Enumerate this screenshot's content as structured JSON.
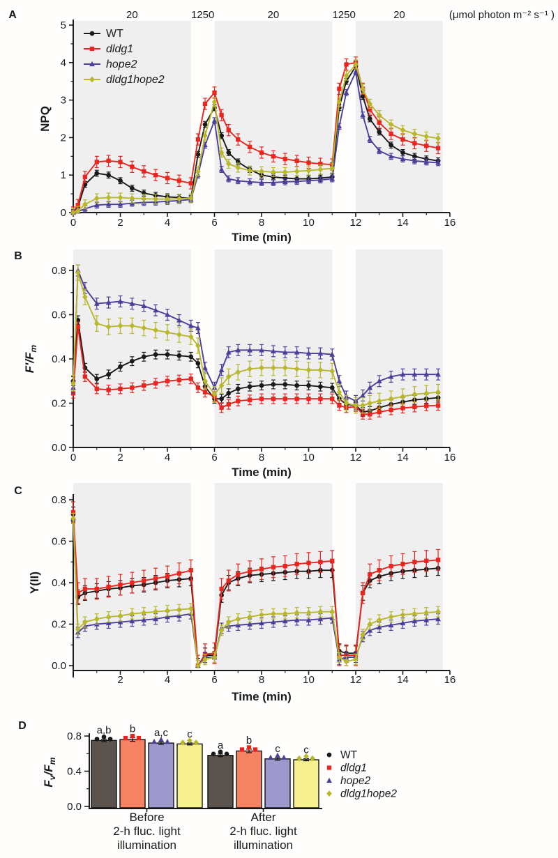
{
  "style": {
    "band_color": "#efefef",
    "axis_color": "#1a1a1a",
    "series": [
      {
        "name": "WT",
        "italic": false,
        "color": "#1a1a1a",
        "marker": "circle"
      },
      {
        "name": "dldg1",
        "italic": true,
        "color": "#e8251f",
        "marker": "square"
      },
      {
        "name": "hope2",
        "italic": true,
        "color": "#4a3f99",
        "marker": "triangle"
      },
      {
        "name": "dldg1hope2",
        "italic": true,
        "color": "#b9b72c",
        "marker": "diamond"
      }
    ]
  },
  "top_axis": {
    "unit_label": "(μmol photon m⁻² s⁻¹ )",
    "bands": [
      {
        "label": "20",
        "from": 0,
        "to": 5,
        "shaded": true
      },
      {
        "label": "1250",
        "from": 5,
        "to": 6,
        "shaded": false
      },
      {
        "label": "20",
        "from": 6,
        "to": 11,
        "shaded": true
      },
      {
        "label": "1250",
        "from": 11,
        "to": 12,
        "shaded": false
      },
      {
        "label": "20",
        "from": 12,
        "to": 15.7,
        "shaded": true
      }
    ]
  },
  "chart_data": [
    {
      "panel": "A",
      "type": "line",
      "ylabel_parts": [
        {
          "t": "NPQ"
        }
      ],
      "ylabel_italic": false,
      "xlabel": "Time (min)",
      "xlim": [
        0,
        16
      ],
      "ylim": [
        0,
        5
      ],
      "xticks": [
        0,
        2,
        4,
        6,
        8,
        10,
        12,
        14,
        16
      ],
      "xtick_labels": [
        "0",
        "2",
        "4",
        "6",
        "8",
        "10",
        "12",
        "14",
        "16"
      ],
      "xminor": [
        1,
        3,
        5,
        7,
        9,
        11,
        13,
        15
      ],
      "yticks": [
        0,
        1,
        2,
        3,
        4,
        5
      ],
      "ytick_labels": [
        "0",
        "1",
        "2",
        "3",
        "4",
        "5"
      ],
      "yminor": [
        0.5,
        1.5,
        2.5,
        3.5,
        4.5
      ],
      "legend": true,
      "show_band_labels": true,
      "x": [
        0,
        0.2,
        0.5,
        1,
        1.5,
        2,
        2.5,
        3,
        3.5,
        4,
        4.5,
        5,
        5.3,
        5.6,
        6,
        6.3,
        6.6,
        7,
        7.5,
        8,
        8.5,
        9,
        9.5,
        10,
        10.5,
        11,
        11.3,
        11.6,
        12,
        12.3,
        12.6,
        13,
        13.5,
        14,
        14.5,
        15,
        15.5
      ],
      "series": [
        {
          "name": "WT",
          "err": 0.08,
          "values": [
            0,
            0.15,
            0.75,
            1.05,
            1.0,
            0.85,
            0.65,
            0.52,
            0.46,
            0.42,
            0.4,
            0.38,
            1.55,
            2.35,
            2.8,
            2.05,
            1.6,
            1.35,
            1.15,
            1.0,
            0.95,
            0.92,
            0.9,
            0.9,
            0.92,
            0.95,
            2.8,
            3.5,
            3.9,
            3.1,
            2.5,
            2.15,
            1.8,
            1.6,
            1.5,
            1.43,
            1.38
          ]
        },
        {
          "name": "dldg1",
          "err": 0.15,
          "values": [
            0,
            0.2,
            0.95,
            1.35,
            1.38,
            1.35,
            1.22,
            1.1,
            1.0,
            0.92,
            0.85,
            0.78,
            1.95,
            2.9,
            3.2,
            2.6,
            2.2,
            1.95,
            1.75,
            1.6,
            1.5,
            1.43,
            1.38,
            1.33,
            1.3,
            1.28,
            3.3,
            3.95,
            4.0,
            3.3,
            2.75,
            2.4,
            2.1,
            1.95,
            1.85,
            1.78,
            1.72
          ]
        },
        {
          "name": "hope2",
          "err": 0.08,
          "values": [
            0,
            0.03,
            0.1,
            0.2,
            0.22,
            0.22,
            0.25,
            0.27,
            0.28,
            0.3,
            0.32,
            0.35,
            1.0,
            1.8,
            2.45,
            1.15,
            0.9,
            0.85,
            0.82,
            0.8,
            0.8,
            0.82,
            0.83,
            0.85,
            0.87,
            0.9,
            2.3,
            3.2,
            3.75,
            2.6,
            1.95,
            1.65,
            1.5,
            1.43,
            1.38,
            1.35,
            1.33
          ]
        },
        {
          "name": "dldg1hope2",
          "err": 0.12,
          "values": [
            0,
            0.05,
            0.22,
            0.38,
            0.4,
            0.4,
            0.38,
            0.37,
            0.36,
            0.36,
            0.37,
            0.38,
            1.1,
            2.05,
            2.95,
            1.6,
            1.3,
            1.2,
            1.12,
            1.1,
            1.08,
            1.08,
            1.1,
            1.12,
            1.15,
            1.18,
            2.95,
            3.65,
            3.95,
            3.3,
            2.9,
            2.6,
            2.35,
            2.2,
            2.1,
            2.03,
            1.98
          ]
        }
      ]
    },
    {
      "panel": "B",
      "type": "line",
      "ylabel_parts": [
        {
          "t": "F′/F"
        },
        {
          "t": "m",
          "sub": true
        }
      ],
      "ylabel_italic": true,
      "xlabel": "Time (min)",
      "xlim": [
        0,
        16
      ],
      "ylim": [
        0,
        0.8
      ],
      "xticks": [
        0,
        2,
        4,
        6,
        8,
        10,
        12,
        14,
        16
      ],
      "xtick_labels": [
        "0",
        "2",
        "4",
        "6",
        "8",
        "10",
        "12",
        "14",
        "16"
      ],
      "xminor": [
        1,
        3,
        5,
        7,
        9,
        11,
        13,
        15
      ],
      "yticks": [
        0,
        0.2,
        0.4,
        0.6,
        0.8
      ],
      "ytick_labels": [
        "0.0",
        "0.2",
        "0.4",
        "0.6",
        "0.8"
      ],
      "yminor": [
        0.1,
        0.3,
        0.5,
        0.7
      ],
      "legend": false,
      "show_band_labels": false,
      "x": [
        0,
        0.2,
        0.5,
        1,
        1.5,
        2,
        2.5,
        3,
        3.5,
        4,
        4.5,
        5,
        5.3,
        5.6,
        6,
        6.3,
        6.6,
        7,
        7.5,
        8,
        8.5,
        9,
        9.5,
        10,
        10.5,
        11,
        11.3,
        11.6,
        12,
        12.3,
        12.6,
        13,
        13.5,
        14,
        14.5,
        15,
        15.5
      ],
      "series": [
        {
          "name": "WT",
          "err": 0.02,
          "values": [
            0.3,
            0.575,
            0.36,
            0.31,
            0.33,
            0.365,
            0.39,
            0.41,
            0.42,
            0.42,
            0.415,
            0.41,
            0.38,
            0.275,
            0.22,
            0.22,
            0.245,
            0.265,
            0.275,
            0.28,
            0.285,
            0.285,
            0.28,
            0.28,
            0.275,
            0.27,
            0.22,
            0.195,
            0.19,
            0.16,
            0.165,
            0.18,
            0.195,
            0.205,
            0.215,
            0.22,
            0.225
          ]
        },
        {
          "name": "dldg1",
          "err": 0.022,
          "values": [
            0.245,
            0.545,
            0.32,
            0.265,
            0.26,
            0.265,
            0.27,
            0.28,
            0.29,
            0.3,
            0.305,
            0.31,
            0.27,
            0.25,
            0.23,
            0.18,
            0.195,
            0.21,
            0.215,
            0.22,
            0.22,
            0.22,
            0.22,
            0.22,
            0.22,
            0.22,
            0.19,
            0.18,
            0.185,
            0.15,
            0.15,
            0.16,
            0.17,
            0.178,
            0.183,
            0.188,
            0.19
          ]
        },
        {
          "name": "hope2",
          "err": 0.025,
          "values": [
            0.27,
            0.8,
            0.72,
            0.65,
            0.655,
            0.66,
            0.65,
            0.64,
            0.62,
            0.6,
            0.575,
            0.55,
            0.54,
            0.36,
            0.27,
            0.35,
            0.43,
            0.44,
            0.44,
            0.44,
            0.435,
            0.43,
            0.43,
            0.425,
            0.425,
            0.42,
            0.3,
            0.23,
            0.21,
            0.235,
            0.27,
            0.3,
            0.32,
            0.33,
            0.33,
            0.33,
            0.33
          ]
        },
        {
          "name": "dldg1hope2",
          "err": 0.035,
          "values": [
            0.29,
            0.79,
            0.68,
            0.56,
            0.545,
            0.55,
            0.55,
            0.54,
            0.53,
            0.52,
            0.51,
            0.5,
            0.46,
            0.3,
            0.24,
            0.28,
            0.32,
            0.34,
            0.355,
            0.36,
            0.36,
            0.36,
            0.355,
            0.35,
            0.35,
            0.345,
            0.25,
            0.2,
            0.19,
            0.19,
            0.2,
            0.21,
            0.22,
            0.23,
            0.24,
            0.245,
            0.25
          ]
        }
      ]
    },
    {
      "panel": "C",
      "type": "line",
      "ylabel_parts": [
        {
          "t": "Y(II)"
        }
      ],
      "ylabel_italic": false,
      "xlabel": "Time (min)",
      "xlim": [
        0,
        16
      ],
      "ylim": [
        0,
        0.8
      ],
      "xticks": [
        2,
        4,
        6,
        8,
        10,
        12,
        14,
        16
      ],
      "xtick_labels": [
        "2",
        "4",
        "6",
        "8",
        "10",
        "12",
        "14",
        "16"
      ],
      "xminor": [
        1,
        3,
        5,
        7,
        9,
        11,
        13,
        15
      ],
      "yticks": [
        0,
        0.2,
        0.4,
        0.6,
        0.8
      ],
      "ytick_labels": [
        "0.0",
        "0.2",
        "0.4",
        "0.6",
        "0.8"
      ],
      "yminor": [
        0.1,
        0.3,
        0.5,
        0.7
      ],
      "legend": false,
      "show_band_labels": false,
      "x": [
        0,
        0.2,
        0.5,
        1,
        1.5,
        2,
        2.5,
        3,
        3.5,
        4,
        4.5,
        5,
        5.3,
        5.6,
        6,
        6.3,
        6.6,
        7,
        7.5,
        8,
        8.5,
        9,
        9.5,
        10,
        10.5,
        11,
        11.3,
        11.6,
        12,
        12.3,
        12.6,
        13,
        13.5,
        14,
        14.5,
        15,
        15.5
      ],
      "series": [
        {
          "name": "WT",
          "err": 0.035,
          "values": [
            0.73,
            0.33,
            0.35,
            0.36,
            0.37,
            0.375,
            0.385,
            0.39,
            0.4,
            0.41,
            0.415,
            0.42,
            0.0,
            0.05,
            0.05,
            0.34,
            0.4,
            0.42,
            0.435,
            0.44,
            0.445,
            0.45,
            0.455,
            0.455,
            0.46,
            0.46,
            0.07,
            0.06,
            0.06,
            0.35,
            0.41,
            0.43,
            0.445,
            0.455,
            0.46,
            0.465,
            0.47
          ]
        },
        {
          "name": "dldg1",
          "err": 0.05,
          "values": [
            0.74,
            0.35,
            0.37,
            0.37,
            0.38,
            0.39,
            0.4,
            0.41,
            0.42,
            0.43,
            0.445,
            0.46,
            0.0,
            0.055,
            0.06,
            0.37,
            0.41,
            0.44,
            0.455,
            0.465,
            0.475,
            0.48,
            0.49,
            0.495,
            0.5,
            0.505,
            0.05,
            0.05,
            0.05,
            0.35,
            0.44,
            0.46,
            0.48,
            0.49,
            0.5,
            0.505,
            0.51
          ]
        },
        {
          "name": "hope2",
          "err": 0.025,
          "values": [
            0.71,
            0.16,
            0.19,
            0.2,
            0.205,
            0.21,
            0.215,
            0.22,
            0.225,
            0.235,
            0.24,
            0.25,
            0.0,
            0.04,
            0.04,
            0.18,
            0.19,
            0.195,
            0.2,
            0.205,
            0.21,
            0.215,
            0.22,
            0.22,
            0.225,
            0.23,
            0.03,
            0.04,
            0.04,
            0.14,
            0.17,
            0.185,
            0.195,
            0.205,
            0.215,
            0.22,
            0.225
          ]
        },
        {
          "name": "dldg1hope2",
          "err": 0.025,
          "values": [
            0.71,
            0.175,
            0.21,
            0.225,
            0.235,
            0.24,
            0.25,
            0.255,
            0.26,
            0.265,
            0.27,
            0.275,
            0.0,
            0.03,
            0.04,
            0.17,
            0.21,
            0.225,
            0.235,
            0.245,
            0.25,
            0.25,
            0.255,
            0.255,
            0.26,
            0.26,
            0.04,
            0.02,
            0.03,
            0.15,
            0.2,
            0.22,
            0.235,
            0.245,
            0.25,
            0.255,
            0.26
          ]
        }
      ]
    },
    {
      "panel": "D",
      "type": "bar",
      "ylabel_parts": [
        {
          "t": "F"
        },
        {
          "t": "v",
          "sub": true
        },
        {
          "t": "/F"
        },
        {
          "t": "m",
          "sub": true
        }
      ],
      "ylabel_italic": true,
      "ylim": [
        0,
        0.8
      ],
      "yticks": [
        0,
        0.4,
        0.8
      ],
      "ytick_labels": [
        "0.0",
        "0.4",
        "0.8"
      ],
      "yminor": [
        0.2,
        0.6
      ],
      "groups": [
        {
          "label_lines": [
            "Before",
            "2-h fluc. light",
            "illumination"
          ],
          "letters": [
            "a,b",
            "b",
            "a,c",
            "c"
          ]
        },
        {
          "label_lines": [
            "After",
            "2-h fluc. light",
            "illumination"
          ],
          "letters": [
            "a",
            "b",
            "c",
            "c"
          ]
        }
      ],
      "series": [
        {
          "name": "WT",
          "bar_color": "#5b534d",
          "err": 0.015,
          "values": [
            0.75,
            0.58
          ]
        },
        {
          "name": "dldg1",
          "bar_color": "#f58263",
          "err": 0.02,
          "values": [
            0.76,
            0.63
          ]
        },
        {
          "name": "hope2",
          "bar_color": "#9e99cc",
          "err": 0.015,
          "values": [
            0.72,
            0.54
          ]
        },
        {
          "name": "dldg1hope2",
          "bar_color": "#f6f18e",
          "err": 0.012,
          "values": [
            0.71,
            0.53
          ]
        }
      ],
      "legend": true
    }
  ]
}
